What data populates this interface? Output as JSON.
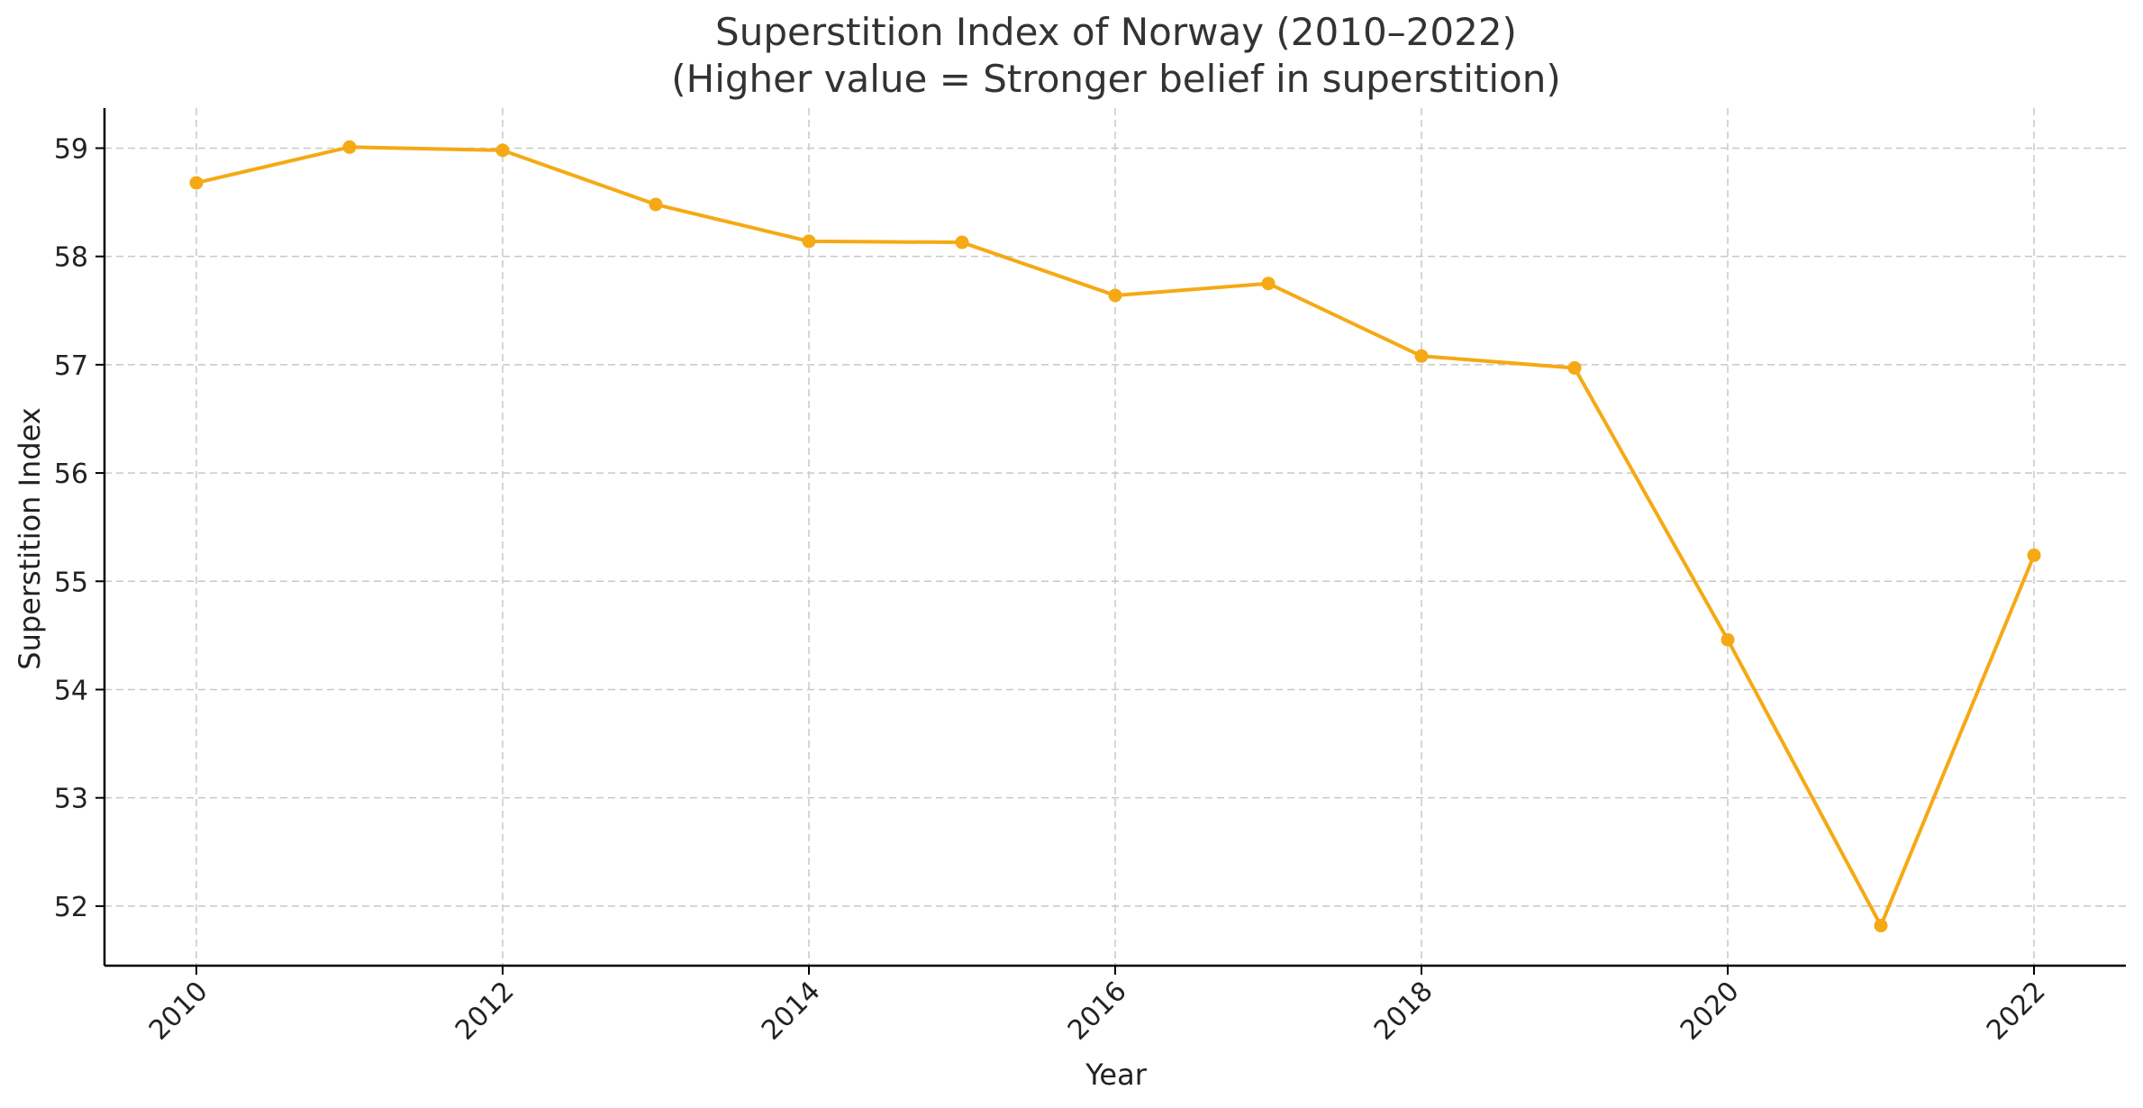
{
  "chart_data": {
    "type": "line",
    "title": "Superstition Index of Norway (2010–2022)",
    "subtitle": "(Higher value = Stronger belief in superstition)",
    "xlabel": "Year",
    "ylabel": "Superstition Index",
    "x": [
      2010,
      2011,
      2012,
      2013,
      2014,
      2015,
      2016,
      2017,
      2018,
      2019,
      2020,
      2021,
      2022
    ],
    "series": [
      {
        "values": [
          58.68,
          59.01,
          58.98,
          58.48,
          58.14,
          58.13,
          57.64,
          57.75,
          57.08,
          56.97,
          54.46,
          51.82,
          55.24
        ],
        "color": "#F5A914",
        "marker": "circle"
      }
    ],
    "xticks": [
      "2010",
      "2012",
      "2014",
      "2016",
      "2018",
      "2020",
      "2022"
    ],
    "yticks": [
      "52",
      "53",
      "54",
      "55",
      "56",
      "57",
      "58",
      "59"
    ],
    "xlim": [
      2009.4,
      2022.6
    ],
    "ylim": [
      51.45,
      59.37
    ],
    "grid": true,
    "legend": "none"
  }
}
